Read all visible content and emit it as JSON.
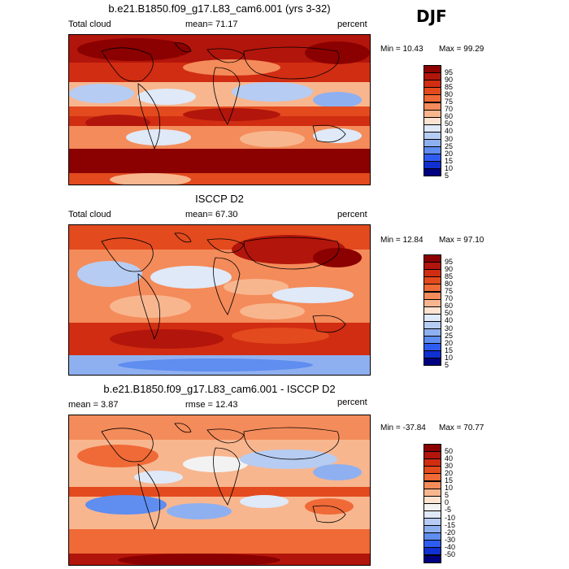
{
  "season": "DJF",
  "panels": [
    {
      "title": "b.e21.B1850.f09_g17.L83_cam6.001 (yrs 3-32)",
      "left_label": "Total cloud",
      "center_label": "mean=  71.17",
      "units": "percent",
      "min_label": "Min =  10.43",
      "max_label": "Max =  99.29",
      "levels": [
        "95",
        "90",
        "85",
        "80",
        "75",
        "70",
        "60",
        "50",
        "40",
        "30",
        "25",
        "20",
        "15",
        "10",
        "5"
      ],
      "colors": [
        "#8b0000",
        "#b2150b",
        "#d12d12",
        "#e34a1e",
        "#ef6a37",
        "#f48b5a",
        "#f8b68f",
        "#fde3d0",
        "#dfe9f8",
        "#b6ccf2",
        "#8fb0f0",
        "#5f8df0",
        "#2f5cf0",
        "#1030d0",
        "#000080"
      ]
    },
    {
      "title": "ISCCP D2",
      "left_label": "Total cloud",
      "center_label": "mean=  67.30",
      "units": "percent",
      "min_label": "Min =  12.84",
      "max_label": "Max =  97.10",
      "levels": [
        "95",
        "90",
        "85",
        "80",
        "75",
        "70",
        "60",
        "50",
        "40",
        "30",
        "25",
        "20",
        "15",
        "10",
        "5"
      ],
      "colors": [
        "#8b0000",
        "#b2150b",
        "#d12d12",
        "#e34a1e",
        "#ef6a37",
        "#f48b5a",
        "#f8b68f",
        "#fde3d0",
        "#dfe9f8",
        "#b6ccf2",
        "#8fb0f0",
        "#5f8df0",
        "#2f5cf0",
        "#1030d0",
        "#000080"
      ]
    },
    {
      "title": "b.e21.B1850.f09_g17.L83_cam6.001 - ISCCP D2",
      "left_label": "mean =   3.87",
      "center_label": "rmse =  12.43",
      "units": "percent",
      "min_label": "Min = -37.84",
      "max_label": "Max =  70.77",
      "levels": [
        "50",
        "40",
        "30",
        "20",
        "15",
        "10",
        "5",
        "0",
        "-5",
        "-10",
        "-15",
        "-20",
        "-30",
        "-40",
        "-50"
      ],
      "colors": [
        "#8b0000",
        "#b2150b",
        "#d12d12",
        "#e34a1e",
        "#ef6a37",
        "#f48b5a",
        "#f8b68f",
        "#fde3d0",
        "#f2f2f2",
        "#dfe9f8",
        "#b6ccf2",
        "#8fb0f0",
        "#5f8df0",
        "#2f5cf0",
        "#1030d0",
        "#000080"
      ]
    }
  ],
  "chart_data": [
    {
      "type": "heatmap",
      "title": "b.e21.B1850.f09_g17.L83_cam6.001 (yrs 3-32)",
      "variable": "Total cloud",
      "units": "percent",
      "mean": 71.17,
      "min": 10.43,
      "max": 99.29,
      "contour_levels": [
        5,
        10,
        15,
        20,
        25,
        30,
        40,
        50,
        60,
        70,
        75,
        80,
        85,
        90,
        95
      ]
    },
    {
      "type": "heatmap",
      "title": "ISCCP D2",
      "variable": "Total cloud",
      "units": "percent",
      "mean": 67.3,
      "min": 12.84,
      "max": 97.1,
      "contour_levels": [
        5,
        10,
        15,
        20,
        25,
        30,
        40,
        50,
        60,
        70,
        75,
        80,
        85,
        90,
        95
      ]
    },
    {
      "type": "heatmap",
      "title": "b.e21.B1850.f09_g17.L83_cam6.001 - ISCCP D2",
      "units": "percent",
      "mean": 3.87,
      "rmse": 12.43,
      "min": -37.84,
      "max": 70.77,
      "contour_levels": [
        -50,
        -40,
        -30,
        -20,
        -15,
        -10,
        -5,
        0,
        5,
        10,
        15,
        20,
        30,
        40,
        50
      ]
    }
  ]
}
